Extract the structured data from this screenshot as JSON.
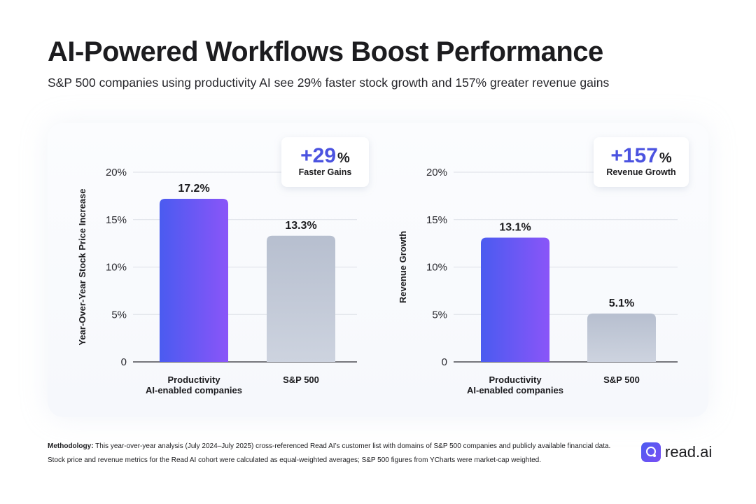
{
  "header": {
    "title": "AI-Powered Workflows Boost Performance",
    "subtitle": "S&P 500 companies using productivity AI see 29% faster stock growth and 157% greater revenue gains"
  },
  "colors": {
    "accent": "#4b53e0",
    "bar_ai_start": "#4a5bf0",
    "bar_ai_end": "#8a55f8",
    "bar_sp_start": "#b7bfcf",
    "bar_sp_end": "#cdd3df",
    "grid": "#dcdfe6",
    "axis": "#2a2a30"
  },
  "chart_data": [
    {
      "type": "bar",
      "ylabel": "Year-Over-Year Stock Price Increase",
      "categories": [
        [
          "Productivity",
          "AI-enabled companies"
        ],
        [
          "S&P 500"
        ]
      ],
      "values": [
        17.2,
        13.3
      ],
      "value_labels": [
        "17.2%",
        "13.3%"
      ],
      "yticks": [
        "0",
        "5%",
        "10%",
        "15%",
        "20%"
      ],
      "ytick_values": [
        0,
        5,
        10,
        15,
        20
      ],
      "ylim": [
        0,
        20
      ],
      "grid": true,
      "callout": {
        "big": "+29",
        "unit": "%",
        "label": "Faster Gains"
      }
    },
    {
      "type": "bar",
      "ylabel": "Revenue Growth",
      "categories": [
        [
          "Productivity",
          "AI-enabled companies"
        ],
        [
          "S&P 500"
        ]
      ],
      "values": [
        13.1,
        5.1
      ],
      "value_labels": [
        "13.1%",
        "5.1%"
      ],
      "yticks": [
        "0",
        "5%",
        "10%",
        "15%",
        "20%"
      ],
      "ytick_values": [
        0,
        5,
        10,
        15,
        20
      ],
      "ylim": [
        0,
        20
      ],
      "grid": true,
      "callout": {
        "big": "+157",
        "unit": "%",
        "label": "Revenue Growth"
      }
    }
  ],
  "footer": {
    "methodology_label": "Methodology:",
    "methodology_text": " This year-over-year analysis (July 2024–July 2025) cross-referenced Read AI’s customer list with domains of S&P 500 companies and publicly available financial data. Stock price and revenue metrics for the Read AI cohort were calculated as equal-weighted averages; S&P 500 figures from YCharts were market-cap weighted.",
    "brand": "read.ai",
    "brand_icon": "read-ai-logo-icon"
  }
}
